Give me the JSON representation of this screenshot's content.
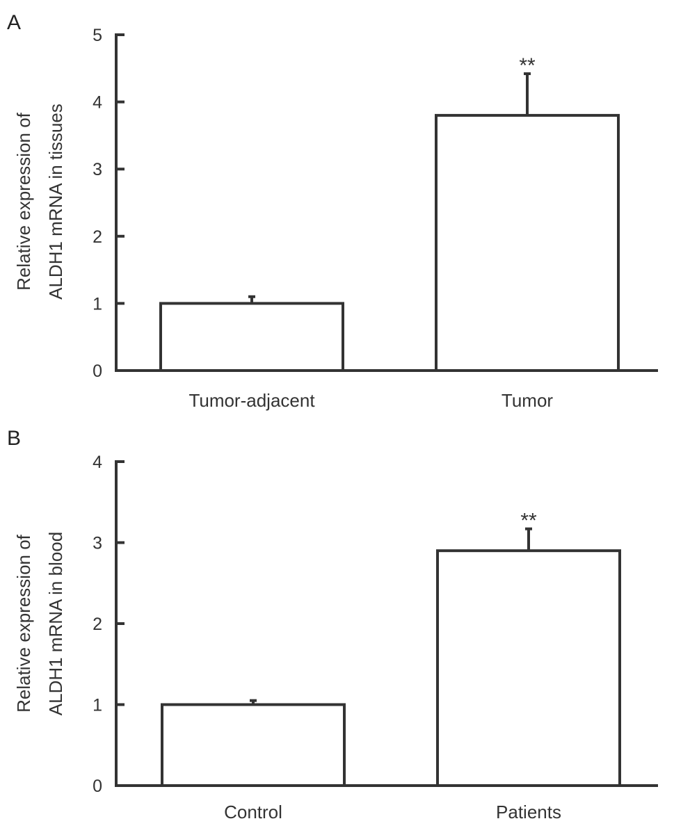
{
  "chart_data": [
    {
      "type": "bar",
      "panel": "A",
      "ylabel_line1": "Relative expression of",
      "ylabel_line2": "ALDH1 mRNA in tissues",
      "categories": [
        "Tumor-adjacent",
        "Tumor"
      ],
      "values": [
        1.0,
        3.8
      ],
      "errors": [
        0.1,
        0.62
      ],
      "annotations": [
        "",
        "**"
      ],
      "ylim": [
        0,
        5
      ],
      "yticks": [
        0,
        1,
        2,
        3,
        4,
        5
      ]
    },
    {
      "type": "bar",
      "panel": "B",
      "ylabel_line1": "Relative expression of",
      "ylabel_line2": "ALDH1 mRNA in blood",
      "categories": [
        "Control",
        "Patients"
      ],
      "values": [
        1.0,
        2.9
      ],
      "errors": [
        0.05,
        0.27
      ],
      "annotations": [
        "",
        "**"
      ],
      "ylim": [
        0,
        4
      ],
      "yticks": [
        0,
        1,
        2,
        3,
        4
      ]
    }
  ]
}
